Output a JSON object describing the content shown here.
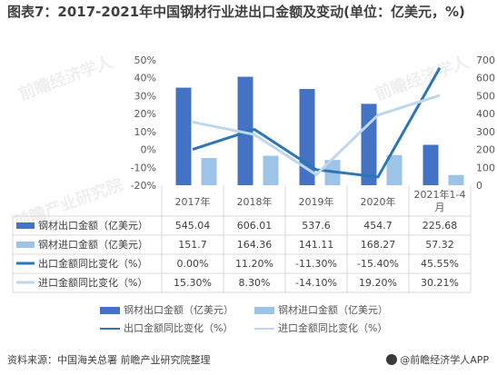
{
  "title": "图表7：2017-2021年中国钢材行业进出口金额及变动(单位：亿美元，%)",
  "colors": {
    "export_bar": "#4472C4",
    "import_bar": "#9DC3E6",
    "export_line": "#2E75B6",
    "import_line": "#BDD7EE",
    "axis_text": "#595959",
    "grid": "#D9D9D9"
  },
  "chart_data": {
    "type": "bar",
    "categories": [
      "2017年",
      "2018年",
      "2019年",
      "2020年",
      "2021年1-4月"
    ],
    "y_left": {
      "ticks": [
        "50%",
        "40%",
        "30%",
        "20%",
        "10%",
        "0%",
        "-10%",
        "-20%"
      ],
      "range": [
        -20,
        50
      ]
    },
    "y_right": {
      "ticks": [
        "700",
        "600",
        "500",
        "400",
        "300",
        "200",
        "100",
        "0"
      ],
      "range": [
        0,
        700
      ]
    },
    "series": [
      {
        "name": "钢材出口金额（亿美元）",
        "kind": "bar",
        "axis": "right",
        "values": [
          545.04,
          606.01,
          537.6,
          454.7,
          225.68
        ],
        "labels": [
          "545.04",
          "606.01",
          "537.6",
          "454.7",
          "225.68"
        ]
      },
      {
        "name": "钢材进口金额（亿美元）",
        "kind": "bar",
        "axis": "right",
        "values": [
          151.7,
          164.36,
          141.11,
          168.27,
          57.32
        ],
        "labels": [
          "151.7",
          "164.36",
          "141.11",
          "168.27",
          "57.32"
        ]
      },
      {
        "name": "出口金额同比变化（%）",
        "kind": "line",
        "axis": "left",
        "values": [
          0.0,
          11.2,
          -11.3,
          -15.4,
          45.55
        ],
        "labels": [
          "0.00%",
          "11.20%",
          "-11.30%",
          "-15.40%",
          "45.55%"
        ]
      },
      {
        "name": "进口金额同比变化（%）",
        "kind": "line",
        "axis": "left",
        "values": [
          15.3,
          8.3,
          -14.1,
          19.2,
          30.21
        ],
        "labels": [
          "15.30%",
          "8.30%",
          "-14.10%",
          "19.20%",
          "30.21%"
        ]
      }
    ]
  },
  "legend": {
    "export_bar": "钢材出口金额（亿美元）",
    "import_bar": "钢材进口金额（亿美元）",
    "export_line": "出口金额同比变化（%）",
    "import_line": "进口金额同比变化（%）"
  },
  "footer": {
    "source": "资料来源：中国海关总署 前瞻产业研究院整理",
    "brand": "@前瞻经济学人APP"
  },
  "watermarks": [
    "前瞻经济学人",
    "前瞻产业研究院",
    "前瞻经济学人"
  ]
}
